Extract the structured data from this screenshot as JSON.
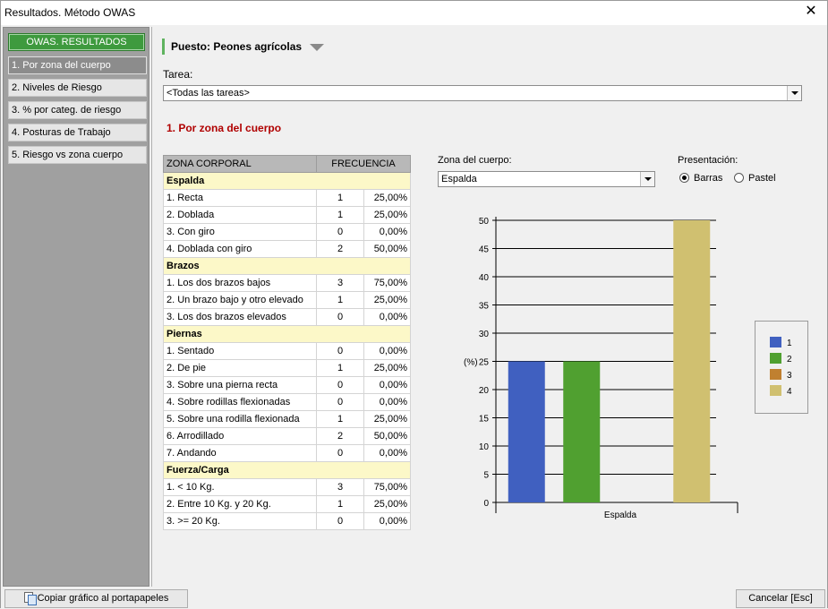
{
  "window": {
    "title": "Resultados. Método OWAS",
    "close_glyph": "✕"
  },
  "sidebar": {
    "header": "OWAS. RESULTADOS",
    "items": [
      {
        "label": "1. Por zona del cuerpo",
        "active": true
      },
      {
        "label": "2. Niveles de Riesgo"
      },
      {
        "label": "3. % por categ. de riesgo"
      },
      {
        "label": "4. Posturas de Trabajo"
      },
      {
        "label": "5. Riesgo vs zona cuerpo"
      }
    ]
  },
  "header": {
    "puesto": "Puesto: Peones agrícolas"
  },
  "tarea": {
    "label": "Tarea:",
    "value": "<Todas las tareas>"
  },
  "section_title": "1. Por zona del cuerpo",
  "table": {
    "col_zona": "ZONA CORPORAL",
    "col_freq": "FRECUENCIA",
    "groups": [
      {
        "name": "Espalda",
        "rows": [
          {
            "label": "1. Recta",
            "n": "1",
            "pct": "25,00%"
          },
          {
            "label": "2. Doblada",
            "n": "1",
            "pct": "25,00%"
          },
          {
            "label": "3. Con giro",
            "n": "0",
            "pct": "0,00%"
          },
          {
            "label": "4. Doblada con giro",
            "n": "2",
            "pct": "50,00%"
          }
        ]
      },
      {
        "name": "Brazos",
        "rows": [
          {
            "label": "1. Los dos brazos bajos",
            "n": "3",
            "pct": "75,00%"
          },
          {
            "label": "2. Un brazo bajo y otro elevado",
            "n": "1",
            "pct": "25,00%"
          },
          {
            "label": "3. Los dos brazos elevados",
            "n": "0",
            "pct": "0,00%"
          }
        ]
      },
      {
        "name": "Piernas",
        "rows": [
          {
            "label": "1. Sentado",
            "n": "0",
            "pct": "0,00%"
          },
          {
            "label": "2. De pie",
            "n": "1",
            "pct": "25,00%"
          },
          {
            "label": "3. Sobre una pierna recta",
            "n": "0",
            "pct": "0,00%"
          },
          {
            "label": "4. Sobre rodillas flexionadas",
            "n": "0",
            "pct": "0,00%"
          },
          {
            "label": "5. Sobre una rodilla flexionada",
            "n": "1",
            "pct": "25,00%"
          },
          {
            "label": "6. Arrodillado",
            "n": "2",
            "pct": "50,00%"
          },
          {
            "label": "7. Andando",
            "n": "0",
            "pct": "0,00%"
          }
        ]
      },
      {
        "name": "Fuerza/Carga",
        "rows": [
          {
            "label": "1. < 10 Kg.",
            "n": "3",
            "pct": "75,00%"
          },
          {
            "label": "2. Entre 10 Kg. y 20 Kg.",
            "n": "1",
            "pct": "25,00%"
          },
          {
            "label": "3. >= 20 Kg.",
            "n": "0",
            "pct": "0,00%"
          }
        ]
      }
    ]
  },
  "zona": {
    "label": "Zona del cuerpo:",
    "value": "Espalda"
  },
  "presentacion": {
    "label": "Presentación:",
    "options": [
      "Barras",
      "Pastel"
    ],
    "selected": "Barras"
  },
  "chart_data": {
    "type": "bar",
    "categories": [
      "Espalda"
    ],
    "series": [
      {
        "name": "1",
        "values": [
          25
        ],
        "color": "#4060c0"
      },
      {
        "name": "2",
        "values": [
          25
        ],
        "color": "#50a030"
      },
      {
        "name": "3",
        "values": [
          0
        ],
        "color": "#c08030"
      },
      {
        "name": "4",
        "values": [
          50
        ],
        "color": "#d0c070"
      }
    ],
    "ylabel": "(%)",
    "ylim": [
      0,
      50
    ],
    "yticks": [
      0,
      5,
      10,
      15,
      20,
      25,
      30,
      35,
      40,
      45,
      50
    ],
    "grid": true,
    "legend": "right"
  },
  "footer": {
    "copy_label": "Copiar gráfico al portapapeles",
    "cancel_label": "Cancelar  [Esc]"
  }
}
